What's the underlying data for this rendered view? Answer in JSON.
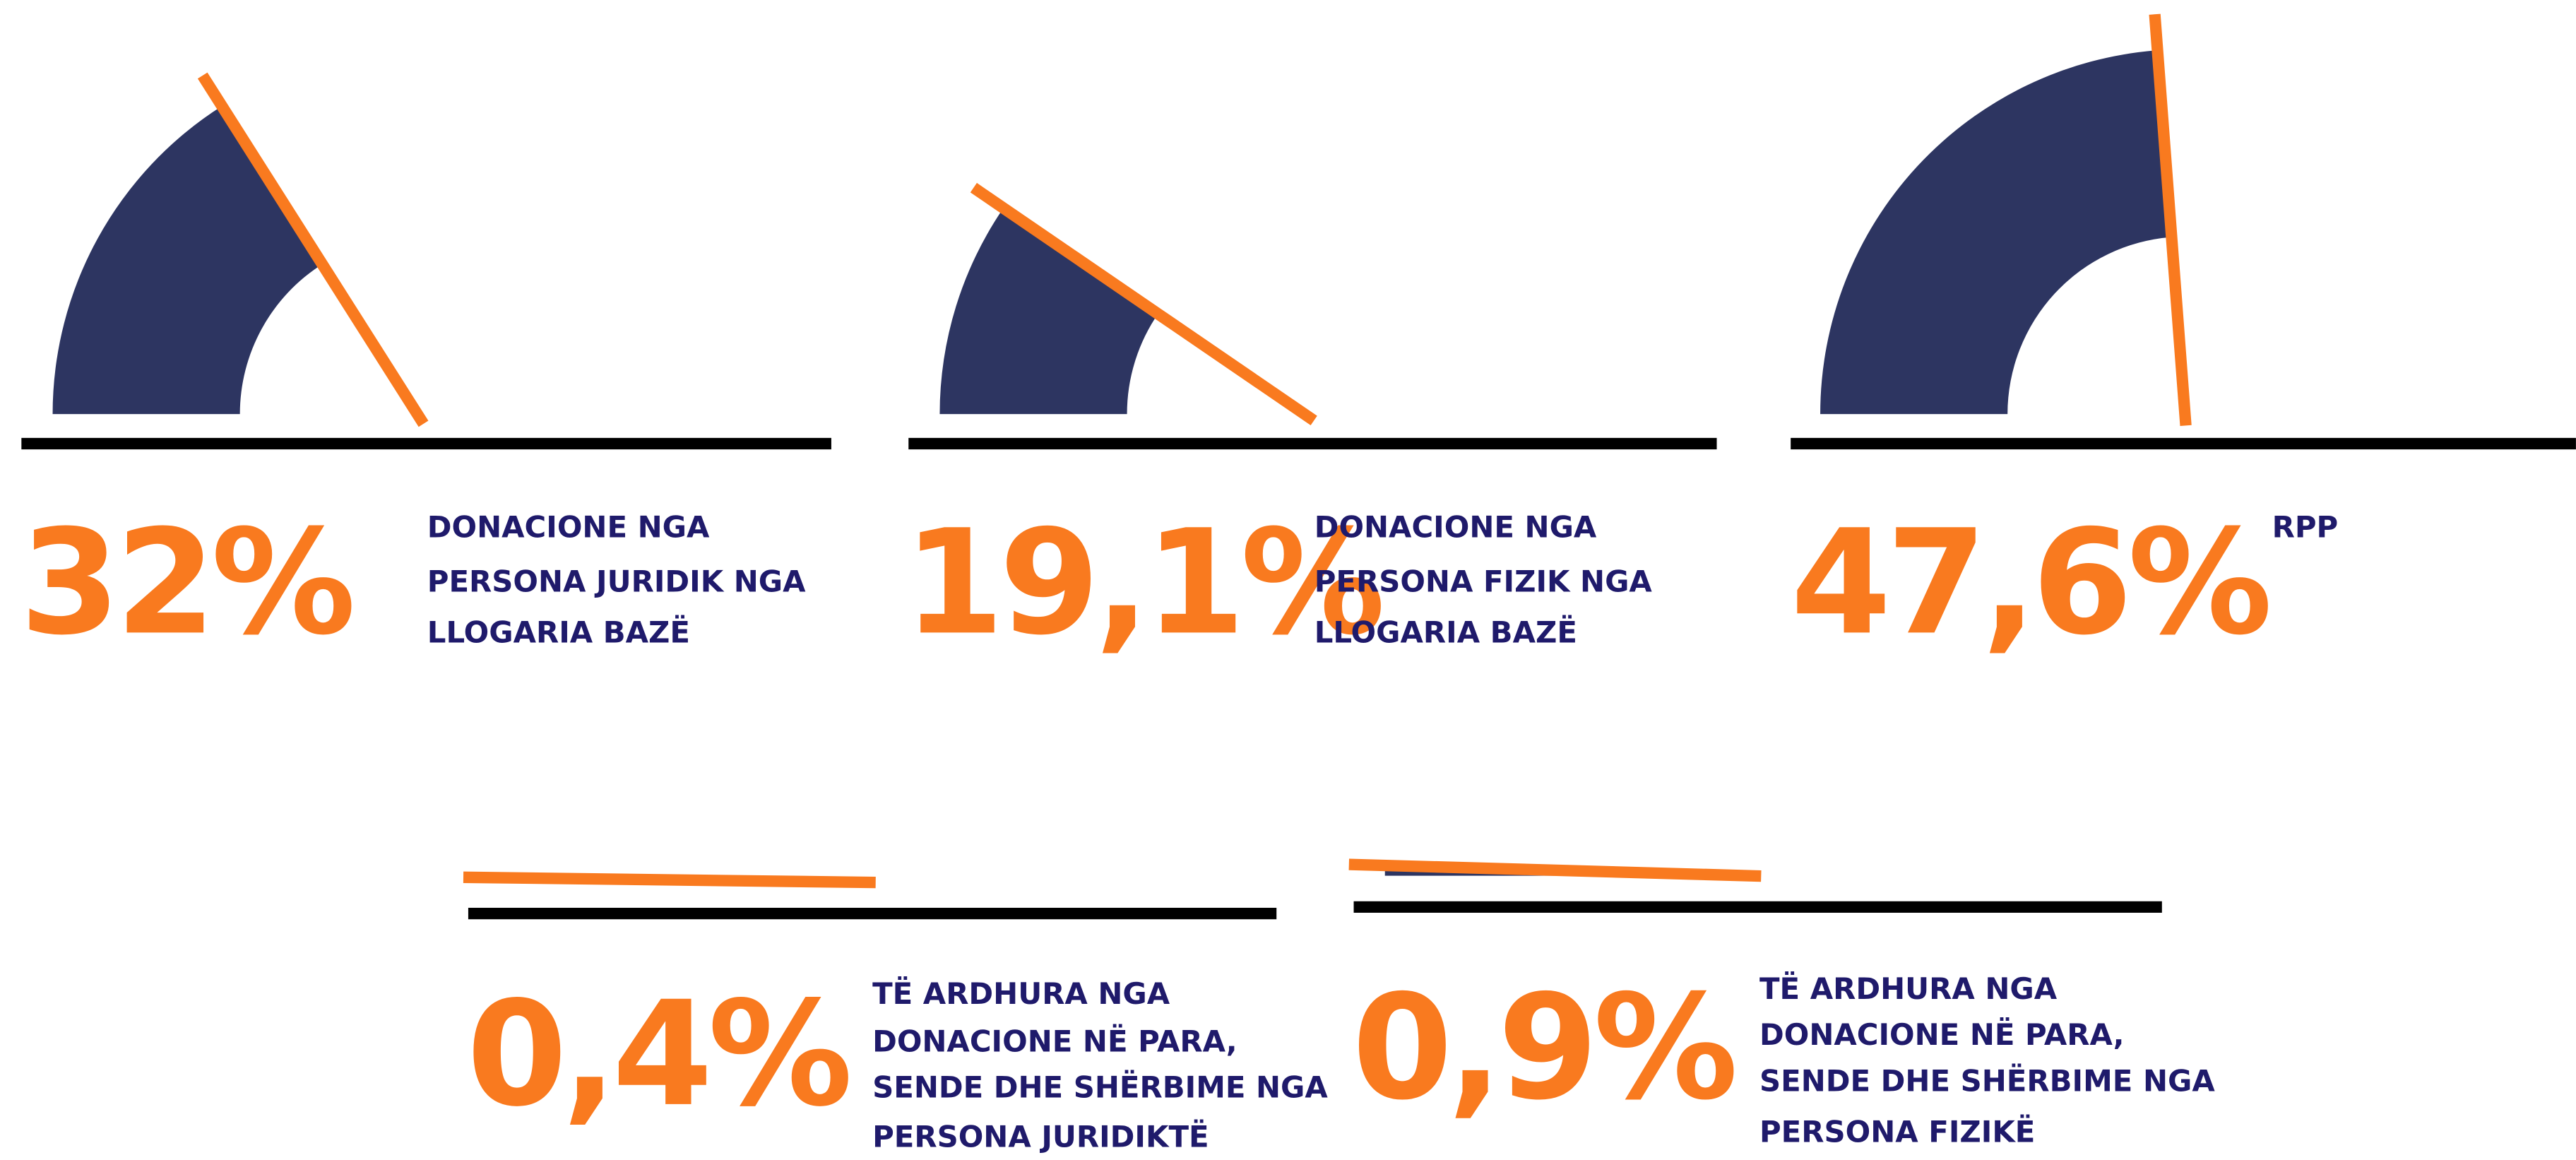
{
  "chart_data": [
    {
      "type": "gauge",
      "value": 32,
      "value_label": "32%",
      "ylim": [
        0,
        100
      ],
      "description": [
        "DONACIONE NGA",
        "PERSONA JURIDIK NGA",
        "LLOGARIA BAZË"
      ],
      "color": "#2d3561",
      "needle_color": "#f97a1f"
    },
    {
      "type": "gauge",
      "value": 19.1,
      "value_label": "19,1%",
      "ylim": [
        0,
        100
      ],
      "description": [
        "DONACIONE NGA",
        "PERSONA FIZIK NGA",
        "LLOGARIA BAZË"
      ],
      "color": "#2d3561",
      "needle_color": "#f97a1f"
    },
    {
      "type": "gauge",
      "value": 47.6,
      "value_label": "47,6%",
      "ylim": [
        0,
        100
      ],
      "description": [
        "RPP"
      ],
      "color": "#2d3561",
      "needle_color": "#f97a1f"
    },
    {
      "type": "gauge",
      "value": 0.4,
      "value_label": "0,4%",
      "ylim": [
        0,
        100
      ],
      "description": [
        "TË ARDHURA NGA",
        "DONACIONE NË PARA,",
        "SENDE DHE SHËRBIME NGA",
        "PERSONA JURIDIKTË"
      ],
      "color": "#2d3561",
      "needle_color": "#f97a1f"
    },
    {
      "type": "gauge",
      "value": 0.9,
      "value_label": "0,9%",
      "ylim": [
        0,
        100
      ],
      "description": [
        "TË ARDHURA NGA",
        "DONACIONE NË PARA,",
        "SENDE DHE SHËRBIME NGA",
        "PERSONA FIZIKË"
      ],
      "color": "#2d3561",
      "needle_color": "#f97a1f"
    }
  ]
}
